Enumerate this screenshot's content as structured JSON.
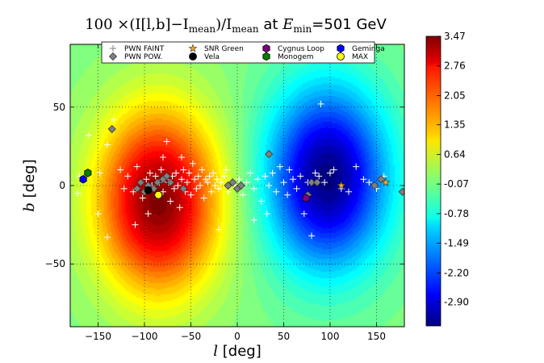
{
  "chart_data": {
    "type": "heatmap",
    "title": {
      "prefix": "100 ×(I[l,b]−I",
      "sub1": "mean",
      "mid": ")/I",
      "sub2": "mean",
      "suffix": " at ",
      "evar": "E",
      "esub": "min",
      "evalue": "=501 GeV"
    },
    "xlabel": {
      "var": "l",
      "unit": " [deg]"
    },
    "ylabel": {
      "var": "b",
      "unit": " [deg]"
    },
    "xlim": [
      -180,
      180
    ],
    "ylim": [
      -90,
      90
    ],
    "xticks": [
      -150,
      -100,
      -50,
      0,
      50,
      100,
      150
    ],
    "xtick_labels": [
      "−150",
      "−100",
      "−50",
      "0",
      "50",
      "100",
      "150"
    ],
    "yticks": [
      -50,
      0,
      50
    ],
    "ytick_labels": [
      "−50",
      "0",
      "50"
    ],
    "grid": "dotted",
    "colorbar": {
      "min": -3.47,
      "max": 3.47,
      "ticks": [
        3.47,
        2.76,
        2.05,
        1.35,
        0.64,
        -0.07,
        -0.78,
        -1.49,
        -2.2,
        -2.9
      ],
      "tick_labels": [
        "3.47",
        "2.76",
        "2.05",
        "1.35",
        "0.64",
        "-0.07",
        "-0.78",
        "-1.49",
        "-2.20",
        "-2.90"
      ]
    },
    "field": {
      "description_model": "dipole",
      "components": [
        {
          "l": -85,
          "b": -10,
          "sigma_l": 45,
          "sigma_b": 40,
          "amp": 3.47
        },
        {
          "l": 97,
          "b": 5,
          "sigma_l": 45,
          "sigma_b": 40,
          "amp": -3.47
        }
      ]
    },
    "legend": {
      "position": "top",
      "entries": [
        {
          "label": "PWN FAINT",
          "marker": "plus",
          "color": "#ffffff"
        },
        {
          "label": "PWN POW.",
          "marker": "diamond",
          "color": "#808080"
        },
        {
          "label": "SNR Green",
          "marker": "star",
          "color": "#f5a623"
        },
        {
          "label": "Vela",
          "marker": "circle",
          "color": "#000000"
        },
        {
          "label": "Cygnus Loop",
          "marker": "hexagon",
          "color": "#800080"
        },
        {
          "label": "Monogem",
          "marker": "hexagon",
          "color": "#008000"
        },
        {
          "label": "Geminga",
          "marker": "hexagon",
          "color": "#0000ff"
        },
        {
          "label": "MAX",
          "marker": "circle",
          "color": "#ffff00"
        }
      ]
    },
    "series": [
      {
        "name": "PWN FAINT",
        "marker": "plus",
        "points": [
          [
            -172,
            -5
          ],
          [
            -160,
            32
          ],
          [
            -148,
            8
          ],
          [
            -140,
            26
          ],
          [
            -133,
            42
          ],
          [
            -126,
            10
          ],
          [
            -122,
            -2
          ],
          [
            -118,
            6
          ],
          [
            -112,
            -4
          ],
          [
            -108,
            12
          ],
          [
            -104,
            2
          ],
          [
            -102,
            -8
          ],
          [
            -98,
            4
          ],
          [
            -96,
            -18
          ],
          [
            -94,
            8
          ],
          [
            -92,
            0
          ],
          [
            -90,
            -2
          ],
          [
            -88,
            6
          ],
          [
            -86,
            -6
          ],
          [
            -84,
            2
          ],
          [
            -82,
            10
          ],
          [
            -80,
            -4
          ],
          [
            -78,
            4
          ],
          [
            -76,
            28
          ],
          [
            -74,
            2
          ],
          [
            -72,
            -10
          ],
          [
            -70,
            6
          ],
          [
            -68,
            -2
          ],
          [
            -66,
            8
          ],
          [
            -64,
            0
          ],
          [
            -62,
            -14
          ],
          [
            -60,
            4
          ],
          [
            -58,
            10
          ],
          [
            -56,
            -4
          ],
          [
            -54,
            2
          ],
          [
            -52,
            8
          ],
          [
            -50,
            -6
          ],
          [
            -48,
            14
          ],
          [
            -46,
            4
          ],
          [
            -44,
            -2
          ],
          [
            -42,
            6
          ],
          [
            -40,
            0
          ],
          [
            -38,
            10
          ],
          [
            -36,
            -8
          ],
          [
            -34,
            4
          ],
          [
            -32,
            2
          ],
          [
            -30,
            6
          ],
          [
            -28,
            -4
          ],
          [
            -26,
            8
          ],
          [
            -24,
            0
          ],
          [
            -22,
            4
          ],
          [
            -20,
            -2
          ],
          [
            -18,
            2
          ],
          [
            -14,
            6
          ],
          [
            -10,
            -4
          ],
          [
            -6,
            2
          ],
          [
            -2,
            0
          ],
          [
            2,
            4
          ],
          [
            6,
            -6
          ],
          [
            10,
            2
          ],
          [
            14,
            8
          ],
          [
            18,
            -2
          ],
          [
            22,
            4
          ],
          [
            26,
            -10
          ],
          [
            30,
            6
          ],
          [
            34,
            0
          ],
          [
            38,
            8
          ],
          [
            42,
            -4
          ],
          [
            46,
            12
          ],
          [
            50,
            2
          ],
          [
            54,
            -6
          ],
          [
            56,
            10
          ],
          [
            60,
            4
          ],
          [
            64,
            -2
          ],
          [
            68,
            6
          ],
          [
            72,
            -18
          ],
          [
            76,
            2
          ],
          [
            80,
            -32
          ],
          [
            84,
            8
          ],
          [
            88,
            6
          ],
          [
            90,
            52
          ],
          [
            94,
            2
          ],
          [
            100,
            8
          ],
          [
            104,
            10
          ],
          [
            112,
            -2
          ],
          [
            120,
            -4
          ],
          [
            128,
            12
          ],
          [
            136,
            4
          ],
          [
            142,
            2
          ],
          [
            150,
            -2
          ],
          [
            158,
            6
          ],
          [
            -150,
            -18
          ],
          [
            -140,
            -33
          ],
          [
            -110,
            -25
          ],
          [
            -20,
            -28
          ],
          [
            18,
            -22
          ],
          [
            32,
            -18
          ],
          [
            -170,
            6
          ],
          [
            -60,
            18
          ],
          [
            -80,
            18
          ],
          [
            -12,
            10
          ]
        ]
      },
      {
        "name": "PWN POW.",
        "marker": "diamond",
        "points": [
          [
            -135,
            36
          ],
          [
            -108,
            -2
          ],
          [
            -104,
            2
          ],
          [
            -100,
            -4
          ],
          [
            -96,
            0
          ],
          [
            -90,
            -2
          ],
          [
            -86,
            2
          ],
          [
            -80,
            4
          ],
          [
            -76,
            6
          ],
          [
            -72,
            2
          ],
          [
            -58,
            -2
          ],
          [
            -10,
            0
          ],
          [
            -5,
            2
          ],
          [
            0,
            -2
          ],
          [
            4,
            0
          ],
          [
            34,
            20
          ],
          [
            76,
            -6
          ],
          [
            80,
            2
          ],
          [
            86,
            2
          ],
          [
            148,
            0
          ],
          [
            155,
            4
          ],
          [
            178,
            -4
          ]
        ]
      },
      {
        "name": "SNR Green",
        "marker": "star",
        "points": [
          [
            112,
            0
          ],
          [
            160,
            2
          ]
        ]
      },
      {
        "name": "Vela",
        "marker": "circle",
        "points": [
          [
            -96,
            -3
          ]
        ]
      },
      {
        "name": "Cygnus Loop",
        "marker": "hexagon",
        "points": [
          [
            74,
            -8
          ]
        ]
      },
      {
        "name": "Monogem",
        "marker": "hexagon",
        "points": [
          [
            -161,
            8
          ]
        ]
      },
      {
        "name": "Geminga",
        "marker": "hexagon",
        "points": [
          [
            -166,
            4
          ]
        ]
      },
      {
        "name": "MAX",
        "marker": "circle",
        "points": [
          [
            -85,
            -6
          ]
        ]
      }
    ]
  }
}
